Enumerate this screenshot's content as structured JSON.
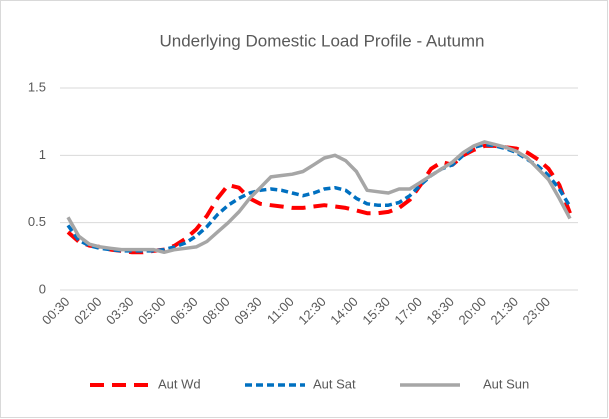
{
  "chart_data": {
    "type": "line",
    "title": "Underlying Domestic Load Profile - Autumn",
    "categories": [
      "00:30",
      null,
      null,
      "02:00",
      null,
      null,
      "03:30",
      null,
      null,
      "05:00",
      null,
      null,
      "06:30",
      null,
      null,
      "08:00",
      null,
      null,
      "09:30",
      null,
      null,
      "11:00",
      null,
      null,
      "12:30",
      null,
      null,
      "14:00",
      null,
      null,
      "15:30",
      null,
      null,
      "17:00",
      null,
      null,
      "18:30",
      null,
      null,
      "20:00",
      null,
      null,
      "21:30",
      null,
      null,
      "23:00",
      null,
      null
    ],
    "series": [
      {
        "name": "Aut Wd",
        "color": "#ff0000",
        "values": [
          0.43,
          0.36,
          0.33,
          0.32,
          0.3,
          0.29,
          0.28,
          0.28,
          0.29,
          0.3,
          0.33,
          0.38,
          0.45,
          0.55,
          0.68,
          0.78,
          0.76,
          0.68,
          0.64,
          0.63,
          0.62,
          0.61,
          0.61,
          0.62,
          0.63,
          0.62,
          0.61,
          0.59,
          0.57,
          0.57,
          0.58,
          0.61,
          0.67,
          0.78,
          0.9,
          0.95,
          0.93,
          1.0,
          1.04,
          1.07,
          1.07,
          1.06,
          1.05,
          1.02,
          0.97,
          0.9,
          0.78,
          0.57
        ]
      },
      {
        "name": "Aut Sat",
        "color": "#0070c0",
        "values": [
          0.48,
          0.37,
          0.33,
          0.31,
          0.3,
          0.29,
          0.29,
          0.29,
          0.29,
          0.3,
          0.32,
          0.35,
          0.4,
          0.47,
          0.56,
          0.63,
          0.68,
          0.72,
          0.74,
          0.75,
          0.74,
          0.72,
          0.7,
          0.72,
          0.75,
          0.76,
          0.74,
          0.68,
          0.64,
          0.63,
          0.63,
          0.65,
          0.7,
          0.78,
          0.85,
          0.9,
          0.93,
          1.0,
          1.06,
          1.08,
          1.07,
          1.05,
          1.02,
          0.97,
          0.92,
          0.85,
          0.75,
          0.62
        ]
      },
      {
        "name": "Aut Sun",
        "color": "#a6a6a6",
        "values": [
          0.54,
          0.4,
          0.34,
          0.32,
          0.31,
          0.3,
          0.3,
          0.3,
          0.3,
          0.28,
          0.3,
          0.31,
          0.32,
          0.36,
          0.43,
          0.5,
          0.58,
          0.68,
          0.76,
          0.84,
          0.85,
          0.86,
          0.88,
          0.93,
          0.98,
          1.0,
          0.96,
          0.88,
          0.74,
          0.73,
          0.72,
          0.75,
          0.75,
          0.8,
          0.85,
          0.9,
          0.95,
          1.02,
          1.07,
          1.1,
          1.08,
          1.06,
          1.03,
          0.98,
          0.9,
          0.82,
          0.68,
          0.53
        ]
      }
    ],
    "ylim": [
      0,
      1.5
    ],
    "yticks": [
      0,
      0.5,
      1,
      1.5
    ],
    "grid": true
  }
}
